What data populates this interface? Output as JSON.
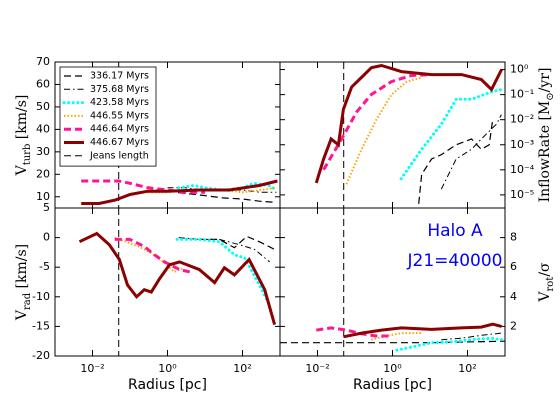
{
  "chart_data": [
    {
      "type": "line",
      "xlog": true,
      "xlim": [
        0.001,
        1000
      ],
      "xticks": [
        0.01,
        1,
        100
      ],
      "ylabel": [
        "V",
        "turb",
        " [km/s]"
      ],
      "ylim": [
        5,
        70
      ],
      "yticks": [
        5,
        10,
        20,
        30,
        40,
        50,
        60,
        70
      ],
      "legend": "upper left",
      "vline": {
        "name": "Jeans length",
        "x": 0.05,
        "color": "#000000"
      },
      "series": [
        {
          "name": "336.17 Myrs",
          "color": "#000000",
          "dash": "dashed",
          "width": 1.2,
          "x": [
            0.5,
            1,
            3,
            10,
            30,
            100,
            300,
            800
          ],
          "values": [
            13,
            12.5,
            11.5,
            10.5,
            9.5,
            9,
            8,
            7.5
          ]
        },
        {
          "name": "375.68 Myrs",
          "color": "#000000",
          "dash": "dashdot",
          "width": 1,
          "x": [
            1,
            3,
            10,
            30,
            100,
            300,
            800
          ],
          "values": [
            14,
            14,
            13,
            13,
            13,
            12,
            12
          ]
        },
        {
          "name": "423.58 Myrs",
          "color": "#00ffff",
          "dash": "dots",
          "width": 3,
          "x": [
            2,
            5,
            10,
            30,
            100,
            200,
            500,
            800
          ],
          "values": [
            14,
            15,
            14,
            13,
            14,
            16,
            15,
            13
          ]
        },
        {
          "name": "446.55 Myrs",
          "color": "#ffa500",
          "dash": "dotted",
          "width": 2,
          "x": [
            0.3,
            1,
            3,
            10,
            30,
            100,
            300,
            800
          ],
          "values": [
            12,
            12,
            13,
            13,
            13,
            12,
            13,
            14
          ]
        },
        {
          "name": "446.64 Myrs",
          "color": "#ff1493",
          "dash": "dashed",
          "width": 3,
          "x": [
            0.005,
            0.02,
            0.05,
            0.1,
            0.3,
            1,
            3,
            10
          ],
          "values": [
            17,
            17,
            17,
            16,
            14,
            13,
            12,
            12
          ]
        },
        {
          "name": "446.67 Myrs",
          "color": "#8b0000",
          "dash": "solid",
          "width": 3,
          "x": [
            0.005,
            0.015,
            0.04,
            0.1,
            0.3,
            1,
            7,
            45,
            280,
            850
          ],
          "values": [
            7,
            7,
            8.5,
            11,
            12.5,
            12.5,
            13,
            13,
            15,
            17
          ]
        }
      ]
    },
    {
      "type": "line",
      "xlog": true,
      "ylog": true,
      "xlim": [
        0.001,
        1000
      ],
      "xticks": [
        0.01,
        1,
        100
      ],
      "ylabel": [
        "InflowRate [M",
        "⊙",
        "/yr]"
      ],
      "ylim": [
        3e-06,
        2
      ],
      "yticks": [
        {
          "value": 1e-05,
          "label": "10⁻⁵"
        },
        {
          "value": 0.0001,
          "label": "10⁻⁴"
        },
        {
          "value": 0.001,
          "label": "10⁻³"
        },
        {
          "value": 0.01,
          "label": "10⁻²"
        },
        {
          "value": 0.1,
          "label": "10⁻¹"
        },
        {
          "value": 1,
          "label": "10⁰"
        }
      ],
      "vline": {
        "x": 0.05,
        "color": "#000000"
      },
      "series": [
        {
          "color": "#000000",
          "dash": "dashed",
          "width": 1.2,
          "x": [
            5,
            6,
            11,
            20,
            50,
            128,
            234,
            380,
            470
          ],
          "values": [
            4.4e-06,
            6.6e-05,
            0.00027,
            0.0004,
            0.001,
            0.0017,
            0.00066,
            0.001,
            0.01
          ]
        },
        {
          "color": "#000000",
          "dash": "dashdot",
          "width": 1,
          "x": [
            20,
            50,
            128,
            234,
            590,
            800
          ],
          "values": [
            1.7e-05,
            0.00027,
            0.00066,
            0.0017,
            0.0066,
            0.016
          ]
        },
        {
          "color": "#00ffff",
          "dash": "dots",
          "width": 3,
          "x": [
            1.7,
            6,
            20,
            50,
            128,
            440,
            800
          ],
          "values": [
            4.4e-05,
            0.00066,
            0.0066,
            0.065,
            0.065,
            0.13,
            0.16
          ]
        },
        {
          "color": "#ffa500",
          "dash": "dotted",
          "width": 2,
          "x": [
            0.059,
            0.15,
            0.37,
            0.94,
            2.4,
            6
          ],
          "values": [
            2.7e-05,
            0.00066,
            0.01,
            0.1,
            0.33,
            0.48
          ]
        },
        {
          "color": "#ff1493",
          "dash": "dashed",
          "width": 3,
          "x": [
            0.0145,
            0.044,
            0.11,
            0.27,
            0.94,
            3.2,
            11
          ],
          "values": [
            0.0001,
            0.0017,
            0.02,
            0.1,
            0.33,
            0.58,
            0.63
          ]
        },
        {
          "color": "#8b0000",
          "dash": "solid",
          "width": 3,
          "x": [
            0.0093,
            0.0145,
            0.023,
            0.036,
            0.049,
            0.081,
            0.148,
            0.275,
            0.51,
            1.74,
            11,
            69,
            234,
            437,
            813
          ],
          "values": [
            3e-05,
            0.00027,
            0.0017,
            0.001,
            0.026,
            0.2,
            0.48,
            1.2,
            1.45,
            0.83,
            0.63,
            0.63,
            0.4,
            0.16,
            1
          ]
        }
      ]
    },
    {
      "type": "line",
      "xlog": true,
      "xlim": [
        0.001,
        1000
      ],
      "xticks": [
        {
          "value": 0.01,
          "label": "10⁻²"
        },
        {
          "value": 1,
          "label": "10⁰"
        },
        {
          "value": 100,
          "label": "10²"
        }
      ],
      "xlabel": "Radius [pc]",
      "ylabel": [
        "V",
        "rad",
        " [km/s]"
      ],
      "ylim": [
        -20,
        5
      ],
      "yticks": [
        -20,
        -15,
        -10,
        -5,
        0
      ],
      "vline": {
        "x": 0.05,
        "color": "#000000"
      },
      "series": [
        {
          "color": "#000000",
          "dash": "dashed",
          "width": 1.2,
          "x": [
            7,
            24,
            61,
            130,
            280,
            720
          ],
          "values": [
            -0.3,
            -0.3,
            -1.7,
            0.2,
            -0.7,
            -2
          ]
        },
        {
          "color": "#000000",
          "dash": "dashdot",
          "width": 1,
          "x": [
            2,
            7,
            24,
            83,
            210,
            530
          ],
          "values": [
            0,
            -0.3,
            -0.3,
            -1.2,
            -2,
            -4.1
          ]
        },
        {
          "color": "#00ffff",
          "dash": "dots",
          "width": 3,
          "x": [
            1.8,
            7.1,
            24,
            61,
            113,
            280,
            530
          ],
          "values": [
            -0.3,
            -0.3,
            -0.7,
            -2.9,
            -3.4,
            -8,
            -11.4
          ]
        },
        {
          "color": "#ffa500",
          "dash": "dotted",
          "width": 2,
          "x": [
            0.039,
            0.13,
            0.33,
            0.83,
            1.5,
            2.8
          ],
          "values": [
            0,
            -1.2,
            -2.4,
            -4.2,
            -5.8,
            -5.1
          ]
        },
        {
          "color": "#ff1493",
          "dash": "dashed",
          "width": 3,
          "x": [
            0.039,
            0.098,
            0.24,
            0.45,
            0.83,
            2.1,
            3.9
          ],
          "values": [
            -0.3,
            -0.3,
            -1.5,
            -2.9,
            -4.1,
            -5.4,
            -5.8
          ]
        },
        {
          "color": "#8b0000",
          "dash": "solid",
          "width": 3,
          "x": [
            0.0045,
            0.013,
            0.028,
            0.052,
            0.086,
            0.15,
            0.24,
            0.37,
            0.61,
            1.13,
            2.1,
            7.1,
            18,
            33,
            61,
            150,
            390,
            720
          ],
          "values": [
            -0.7,
            0.7,
            -1.2,
            -3.7,
            -8,
            -10,
            -8.8,
            -9.2,
            -7,
            -4.6,
            -4.1,
            -5.4,
            -7.6,
            -5.1,
            -6.3,
            -3.7,
            -8.8,
            -14.7
          ]
        }
      ]
    },
    {
      "type": "line",
      "xlog": true,
      "xlim": [
        0.001,
        1000
      ],
      "xticks": [
        {
          "value": 0.01,
          "label": "10⁻²"
        },
        {
          "value": 1,
          "label": "10⁰"
        },
        {
          "value": 100,
          "label": "10²"
        }
      ],
      "xlabel": "Radius [pc]",
      "ylabel": [
        "V",
        "rot",
        "/σ"
      ],
      "ylim": [
        0,
        10
      ],
      "yticks": [
        2,
        4,
        6,
        8
      ],
      "vline": {
        "x": 0.05,
        "color": "#000000"
      },
      "annotations": [
        "Halo A",
        "J21=40000"
      ],
      "annotation_color": "#0000ff",
      "series": [
        {
          "color": "#000000",
          "dash": "dashed",
          "width": 1.2,
          "x": [
            0.001,
            0.1,
            10,
            1000
          ],
          "values": [
            0.9,
            0.9,
            0.9,
            1.0
          ]
        },
        {
          "color": "#000000",
          "dash": "dashdot",
          "width": 1,
          "x": [
            20,
            69,
            234,
            813
          ],
          "values": [
            1.1,
            1.2,
            1.4,
            1.55
          ]
        },
        {
          "color": "#00ffff",
          "dash": "dots",
          "width": 3,
          "x": [
            1.3,
            3.2,
            11,
            37,
            128,
            437,
            813
          ],
          "values": [
            0.4,
            0.6,
            0.9,
            0.95,
            1.1,
            1.2,
            1.1
          ]
        },
        {
          "color": "#ffa500",
          "dash": "dotted",
          "width": 2,
          "x": [
            0.27,
            0.69,
            1.74,
            6
          ],
          "values": [
            1.1,
            1.35,
            1.55,
            1.55
          ]
        },
        {
          "color": "#ff1493",
          "dash": "dashed",
          "width": 3,
          "x": [
            0.0093,
            0.023,
            0.059,
            0.15,
            0.37,
            0.94
          ],
          "values": [
            1.75,
            1.9,
            1.75,
            1.5,
            1.35,
            1.35
          ]
        },
        {
          "color": "#8b0000",
          "dash": "solid",
          "width": 3,
          "x": [
            0.049,
            0.15,
            0.51,
            1.74,
            11,
            69,
            234,
            470,
            813
          ],
          "values": [
            1.3,
            1.55,
            1.75,
            1.9,
            1.8,
            1.9,
            1.95,
            2.15,
            2.0
          ]
        }
      ]
    }
  ]
}
